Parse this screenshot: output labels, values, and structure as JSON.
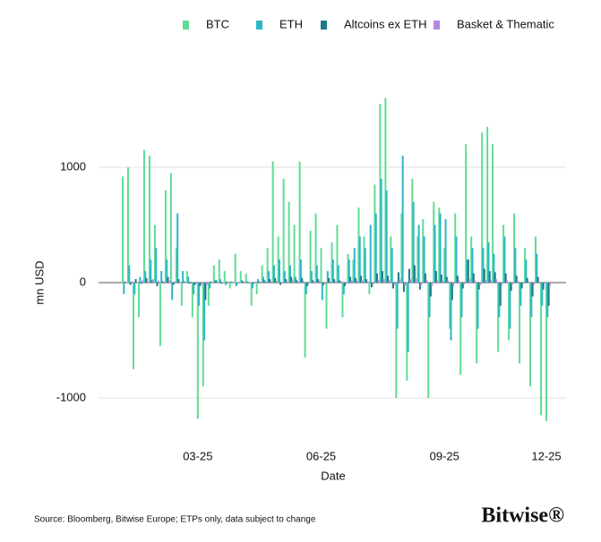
{
  "chart_data": {
    "type": "bar",
    "x_label": "Date",
    "y_label": "mn USD",
    "source": "Source: Bloomberg, Bitwise Europe; ETPs only, data subject to change",
    "brand": "Bitwise®",
    "categories": [
      null,
      null,
      null,
      null,
      null,
      null,
      null,
      null,
      null,
      null,
      null,
      null,
      null,
      null,
      "03-25",
      null,
      null,
      null,
      null,
      null,
      null,
      null,
      null,
      null,
      null,
      null,
      null,
      null,
      null,
      null,
      null,
      null,
      null,
      null,
      null,
      null,
      null,
      "06-25",
      null,
      null,
      null,
      null,
      null,
      null,
      null,
      null,
      null,
      null,
      null,
      null,
      null,
      null,
      null,
      null,
      null,
      null,
      null,
      null,
      null,
      null,
      "09-25",
      null,
      null,
      null,
      null,
      null,
      null,
      null,
      null,
      null,
      null,
      null,
      null,
      null,
      null,
      null,
      null,
      null,
      null,
      "12-25"
    ],
    "series": [
      {
        "name": "BTC",
        "color": "#5fdc97",
        "values": [
          920,
          1000,
          -750,
          -300,
          1150,
          1100,
          500,
          -550,
          800,
          950,
          300,
          -200,
          100,
          -300,
          -1180,
          -900,
          -200,
          150,
          200,
          100,
          -50,
          250,
          100,
          80,
          -200,
          -100,
          150,
          300,
          1050,
          400,
          900,
          700,
          500,
          1050,
          -650,
          450,
          600,
          300,
          -400,
          350,
          500,
          -300,
          250,
          200,
          650,
          400,
          -100,
          850,
          1550,
          1600,
          400,
          -1000,
          600,
          -850,
          900,
          400,
          550,
          -1000,
          700,
          650,
          300,
          -400,
          600,
          -800,
          1200,
          400,
          -700,
          1300,
          1350,
          1200,
          -600,
          500,
          -500,
          600,
          -700,
          300,
          -900,
          400,
          -1150,
          -1200
        ]
      },
      {
        "name": "ETH",
        "color": "#2bb6c9",
        "values": [
          -100,
          150,
          -100,
          50,
          100,
          200,
          300,
          100,
          200,
          -150,
          600,
          100,
          50,
          -100,
          -200,
          -500,
          -50,
          20,
          30,
          -20,
          10,
          -30,
          20,
          10,
          -50,
          30,
          50,
          100,
          150,
          200,
          100,
          150,
          50,
          200,
          -100,
          100,
          150,
          -150,
          100,
          200,
          150,
          -100,
          200,
          300,
          400,
          300,
          500,
          600,
          900,
          800,
          300,
          -400,
          1100,
          -600,
          700,
          500,
          400,
          -300,
          500,
          600,
          550,
          -500,
          400,
          -300,
          200,
          300,
          -400,
          300,
          350,
          250,
          -300,
          400,
          -400,
          300,
          -200,
          200,
          -300,
          250,
          -200,
          -300
        ]
      },
      {
        "name": "Altcoins ex ETH",
        "color": "#1d7a86",
        "values": [
          10,
          -20,
          30,
          -10,
          40,
          20,
          -30,
          10,
          50,
          -20,
          30,
          10,
          -10,
          -20,
          -30,
          -150,
          10,
          20,
          -10,
          10,
          5,
          -5,
          10,
          5,
          -10,
          10,
          20,
          30,
          40,
          -20,
          30,
          50,
          20,
          40,
          -30,
          20,
          30,
          -20,
          40,
          30,
          20,
          -30,
          50,
          40,
          60,
          30,
          -40,
          80,
          100,
          60,
          -50,
          90,
          -80,
          120,
          150,
          -60,
          80,
          -120,
          100,
          70,
          50,
          -150,
          60,
          -50,
          200,
          80,
          -60,
          120,
          100,
          90,
          -200,
          80,
          -70,
          60,
          -50,
          40,
          -120,
          50,
          -60,
          -200
        ]
      },
      {
        "name": "Basket & Thematic",
        "color": "#b389e0",
        "values": [
          5,
          10,
          -5,
          20,
          10,
          30,
          15,
          -10,
          20,
          10,
          5,
          -5,
          10,
          -10,
          -15,
          -20,
          5,
          5,
          -5,
          5,
          0,
          5,
          -5,
          5,
          -5,
          5,
          10,
          10,
          15,
          -5,
          10,
          20,
          10,
          15,
          -10,
          10,
          15,
          -10,
          10,
          10,
          15,
          -10,
          20,
          15,
          20,
          10,
          -15,
          25,
          30,
          20,
          -20,
          30,
          -25,
          30,
          35,
          -20,
          25,
          -30,
          20,
          15,
          15,
          -30,
          20,
          -15,
          30,
          20,
          -20,
          25,
          20,
          30,
          -25,
          20,
          -15,
          15,
          -10,
          10,
          -20,
          10,
          -10,
          -30
        ]
      }
    ],
    "ylim": [
      -1300,
      1650
    ],
    "yticks": [
      -1000,
      0,
      1000
    ],
    "grid": true
  }
}
